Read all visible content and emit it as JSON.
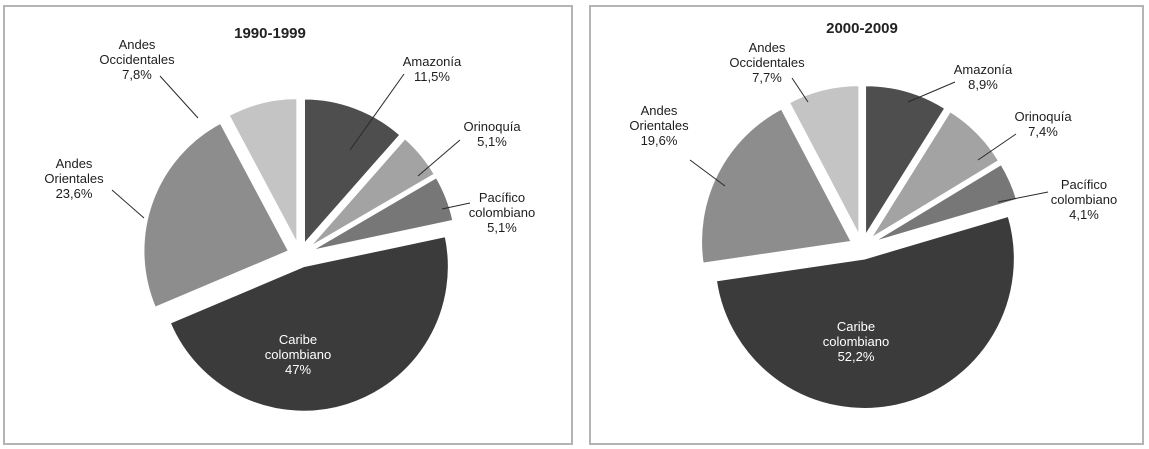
{
  "chart_data": [
    {
      "type": "pie",
      "title": "1990-1999",
      "slices": [
        {
          "name": "Amazonía",
          "label": [
            "Amazonía",
            "11,5%"
          ],
          "value": 11.5,
          "color": "#4e4e4e"
        },
        {
          "name": "Orinoquía",
          "label": [
            "Orinoquía",
            "5,1%"
          ],
          "value": 5.1,
          "color": "#a3a3a3"
        },
        {
          "name": "Pacífico colombiano",
          "label": [
            "Pacífico",
            "colombiano",
            "5,1%"
          ],
          "value": 5.1,
          "color": "#777777"
        },
        {
          "name": "Caribe colombiano",
          "label": [
            "Caribe",
            "colombiano",
            "47%"
          ],
          "value": 47,
          "color": "#3b3b3b"
        },
        {
          "name": "Andes Orientales",
          "label": [
            "Andes",
            "Orientales",
            "23,6%"
          ],
          "value": 23.6,
          "color": "#8d8d8d"
        },
        {
          "name": "Andes Occidentales",
          "label": [
            "Andes",
            "Occidentales",
            "7,8%"
          ],
          "value": 7.8,
          "color": "#c4c4c4"
        }
      ]
    },
    {
      "type": "pie",
      "title": "2000-2009",
      "slices": [
        {
          "name": "Amazonía",
          "label": [
            "Amazonía",
            "8,9%"
          ],
          "value": 8.9,
          "color": "#4e4e4e"
        },
        {
          "name": "Orinoquía",
          "label": [
            "Orinoquía",
            "7,4%"
          ],
          "value": 7.4,
          "color": "#a3a3a3"
        },
        {
          "name": "Pacífico colombiano",
          "label": [
            "Pacífico",
            "colombiano",
            "4,1%"
          ],
          "value": 4.1,
          "color": "#777777"
        },
        {
          "name": "Caribe colombiano",
          "label": [
            "Caribe",
            "colombiano",
            "52,2%"
          ],
          "value": 52.2,
          "color": "#3b3b3b"
        },
        {
          "name": "Andes Orientales",
          "label": [
            "Andes",
            "Orientales",
            "19,6%"
          ],
          "value": 19.6,
          "color": "#8d8d8d"
        },
        {
          "name": "Andes Occidentales",
          "label": [
            "Andes",
            "Occidentales",
            "7,7%"
          ],
          "value": 7.7,
          "color": "#c4c4c4"
        }
      ]
    }
  ]
}
